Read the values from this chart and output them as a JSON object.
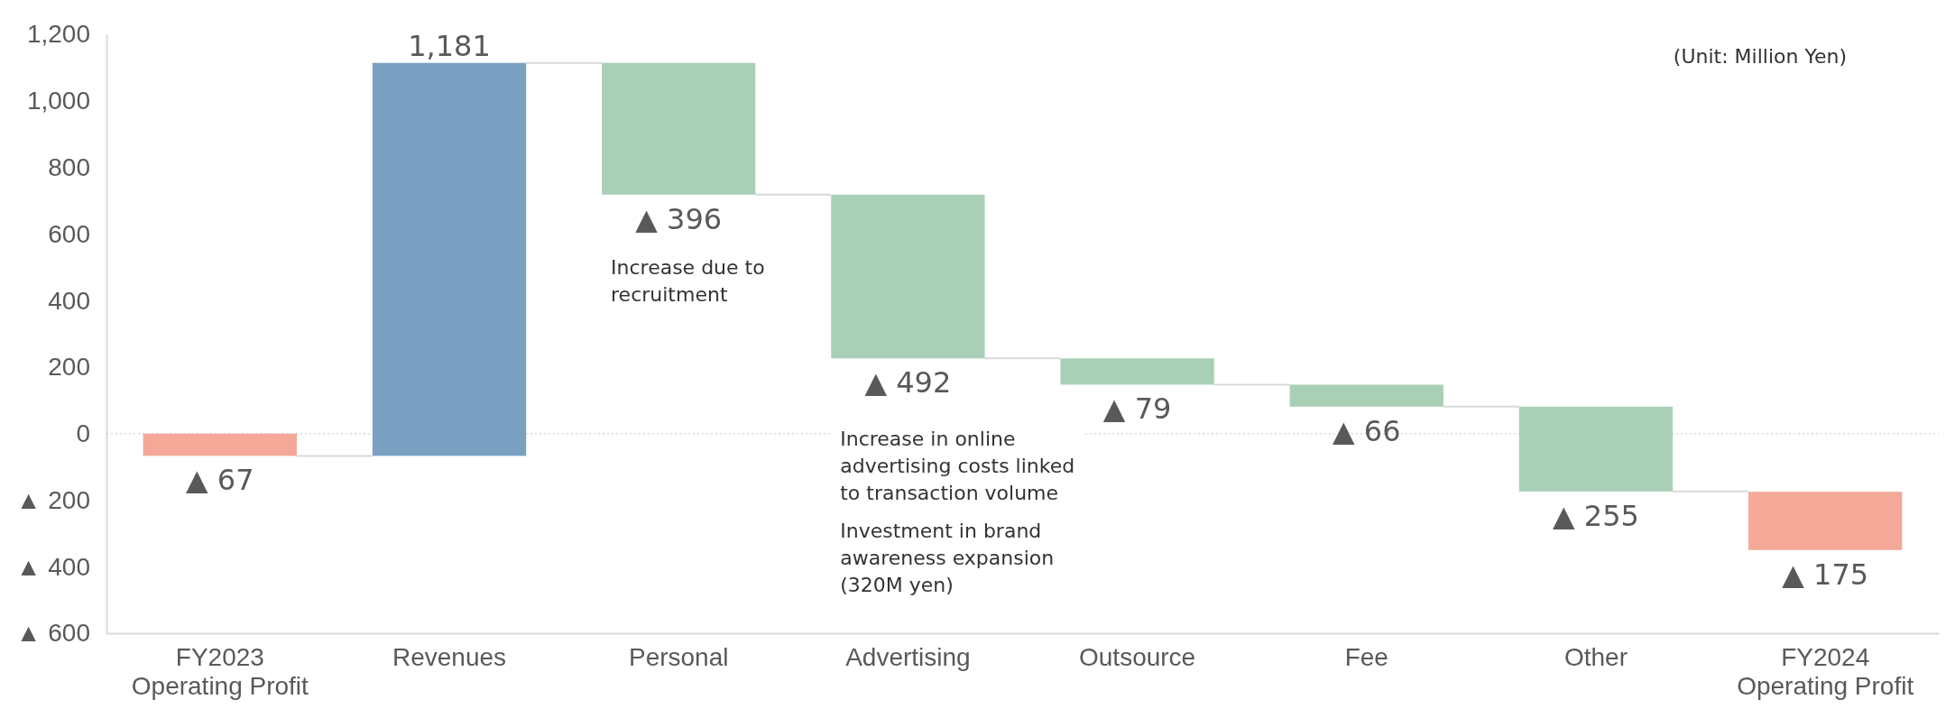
{
  "chart_data": {
    "type": "bar",
    "categories": [
      "FY2023\nOperating Profit",
      "Revenues",
      "Personal",
      "Advertising",
      "Outsource",
      "Fee",
      "Other",
      "FY2024\nOperating Profit"
    ],
    "values": [
      -67,
      1181,
      -396,
      -492,
      -79,
      -66,
      -255,
      -175
    ],
    "base": [
      0,
      -67,
      1114,
      718,
      226,
      147,
      81,
      -175
    ],
    "colors": [
      "#f4a898",
      "#7ba1c2",
      "#a9d0b6",
      "#a9d0b6",
      "#a9d0b6",
      "#a9d0b6",
      "#a9d0b6",
      "#f4a898"
    ],
    "value_labels": [
      "▲ 67",
      "1,181",
      "▲ 396",
      "▲ 492",
      "▲ 79",
      "▲ 66",
      "▲ 255",
      "▲ 175"
    ],
    "ylim": [
      -600,
      1200
    ],
    "yticks": [
      {
        "value": -600,
        "label": "▲ 600"
      },
      {
        "value": -400,
        "label": "▲ 400"
      },
      {
        "value": -200,
        "label": "▲ 200"
      },
      0,
      {
        "value": 200,
        "label": "200"
      },
      {
        "value": 400,
        "label": "400"
      },
      {
        "value": 600,
        "label": "600"
      },
      {
        "value": 800,
        "label": "800"
      },
      {
        "value": 1000,
        "label": "1,000"
      },
      {
        "value": 1200,
        "label": "1,200"
      }
    ],
    "ref_lines": [
      {
        "axis": "y",
        "value": 0,
        "color": "#d9d9d9",
        "line_style": "dotted"
      }
    ],
    "grid": false,
    "annotations": [
      "(Unit: Million Yen)",
      "Increase due to\nrecruitment",
      "Increase in online\nadvertising costs linked\nto transaction volume",
      "Investment in brand\nawareness expansion\n(320M yen)"
    ]
  }
}
